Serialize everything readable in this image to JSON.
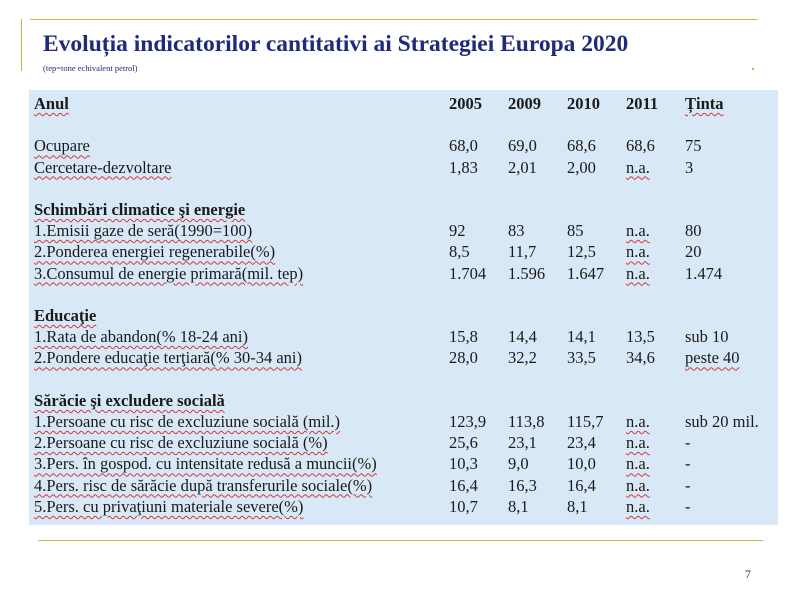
{
  "slide": {
    "title": "Evoluția indicatorilor cantitativi ai Strategiei Europa 2020",
    "subtitle": "(tep=tone echivalent petrol)",
    "page_number": "7"
  },
  "table": {
    "header": [
      "Anul",
      "2005",
      "2009",
      "2010",
      "2011",
      "Ținta"
    ],
    "rows": [
      [
        "Ocupare",
        "68,0",
        "69,0",
        "68,6",
        "68,6",
        "75"
      ],
      [
        "Cercetare-dezvoltare",
        "1,83",
        "2,01",
        "2,00",
        "n.a.",
        "3"
      ],
      [
        "Schimbări climatice şi energie"
      ],
      [
        "1.Emisii  gaze de seră(1990=100)",
        "92",
        "83",
        "85",
        "n.a.",
        "80"
      ],
      [
        "2.Ponderea energiei regenerabile(%)",
        "8,5",
        "11,7",
        "12,5",
        "n.a.",
        "20"
      ],
      [
        "3.Consumul de energie primară(mil.  tep)",
        "1.704",
        "1.596",
        "1.647",
        "n.a.",
        "1.474"
      ],
      [
        "Educaţie"
      ],
      [
        "1.Rata de abandon(% 18-24 ani)",
        "15,8",
        "14,4",
        "14,1",
        "13,5",
        "sub 10"
      ],
      [
        "2.Pondere educaţie terţiară(% 30-34 ani)",
        "28,0",
        "32,2",
        "33,5",
        "34,6",
        "peste 40"
      ],
      [
        "Sărăcie şi excludere socială"
      ],
      [
        "1.Persoane cu risc de excluziune  socială (mil.)",
        "123,9",
        "113,8",
        "115,7",
        "n.a.",
        "sub 20 mil."
      ],
      [
        "2.Persoane cu risc de excluziune  socială (%)",
        "25,6",
        "23,1",
        "23,4",
        "n.a.",
        "-"
      ],
      [
        "3.Pers. în gospod. cu intensitate redusă a muncii(%)",
        "10,3",
        "9,0",
        "10,0",
        "n.a.",
        "-"
      ],
      [
        "4.Pers. risc de sărăcie după transferurile sociale(%)",
        "16,4",
        "16,3",
        "16,4",
        "n.a.",
        "-"
      ],
      [
        "5.Pers.  cu privaţiuni  materiale  severe(%)",
        "10,7",
        "8,1",
        "8,1",
        "n.a.",
        "-"
      ]
    ]
  }
}
